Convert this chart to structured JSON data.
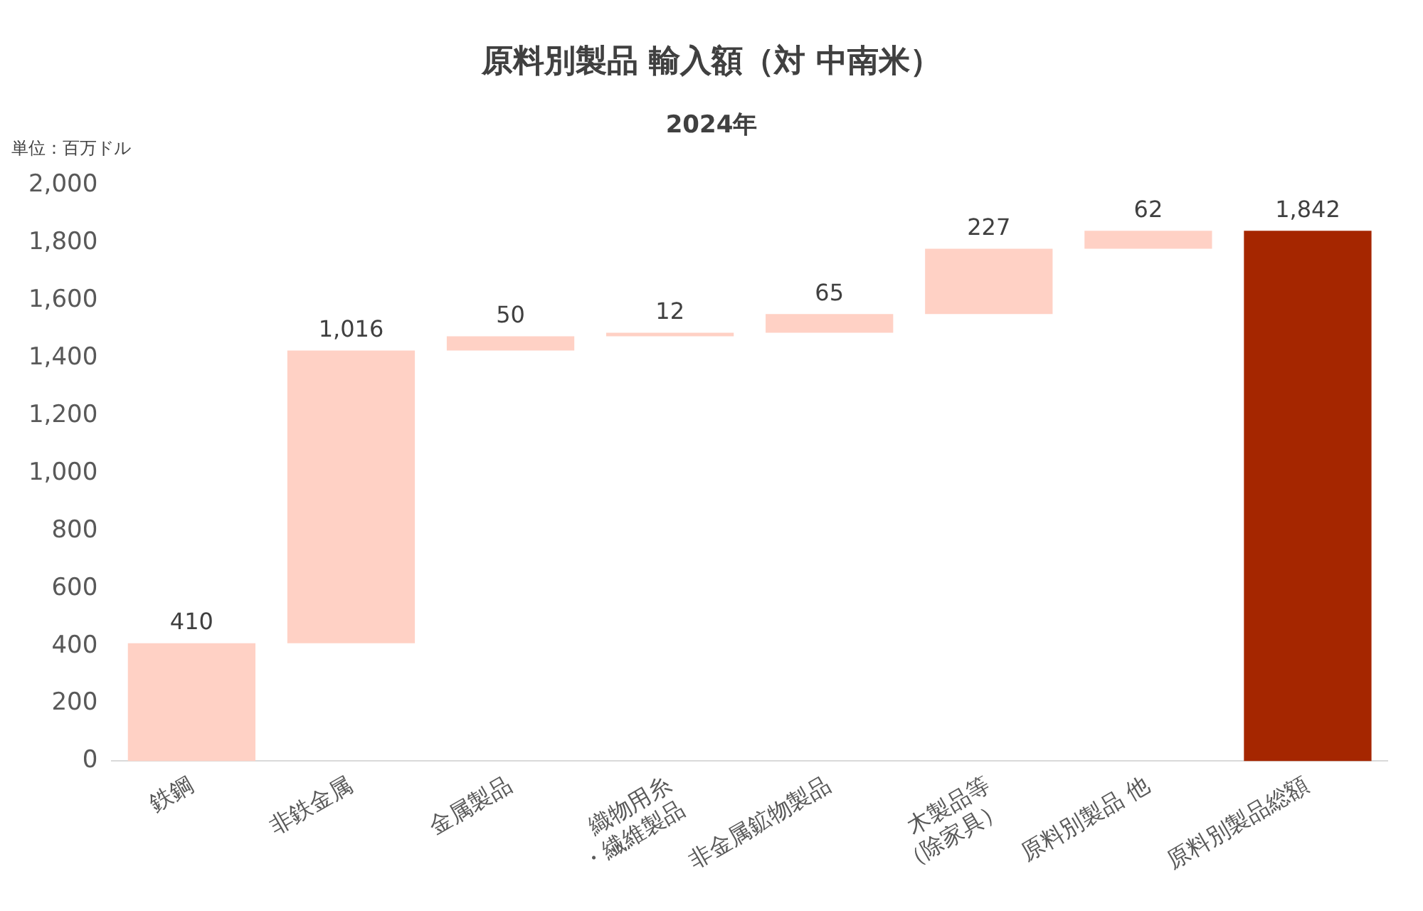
{
  "chart_data": {
    "type": "bar",
    "title": "原料別製品 輸入額（対 中南米）",
    "subtitle": "2024年",
    "annotations": [
      "単位：百万ドル"
    ],
    "categories": [
      "鉄鋼",
      "非鉄金属",
      "金属製品",
      "織物用糸\n・繊維製品",
      "非金属鉱物製品",
      "木製品等\n（除家具）",
      "原料別製品 他",
      "原料別製品総額"
    ],
    "values": [
      410,
      1016,
      50,
      12,
      65,
      227,
      62,
      1842
    ],
    "base": [
      0,
      410,
      1426,
      1476,
      1488,
      1553,
      1780,
      0
    ],
    "colors": [
      "#ffd1c5",
      "#ffd1c5",
      "#ffd1c5",
      "#ffd1c5",
      "#ffd1c5",
      "#ffd1c5",
      "#ffd1c5",
      "#a52600"
    ],
    "value_labels": [
      "410",
      "1,016",
      "50",
      "12",
      "65",
      "227",
      "62",
      "1,842"
    ],
    "ylim": [
      0,
      2000
    ],
    "yticks": [
      0,
      200,
      400,
      600,
      800,
      {
        "value": 1000,
        "label": "1,000"
      },
      {
        "value": 1200,
        "label": "1,200"
      },
      {
        "value": 1400,
        "label": "1,400"
      },
      {
        "value": 1600,
        "label": "1,600"
      },
      {
        "value": 1800,
        "label": "1,800"
      },
      {
        "value": 2000,
        "label": "2,000"
      }
    ],
    "grid": false,
    "legend": false
  }
}
